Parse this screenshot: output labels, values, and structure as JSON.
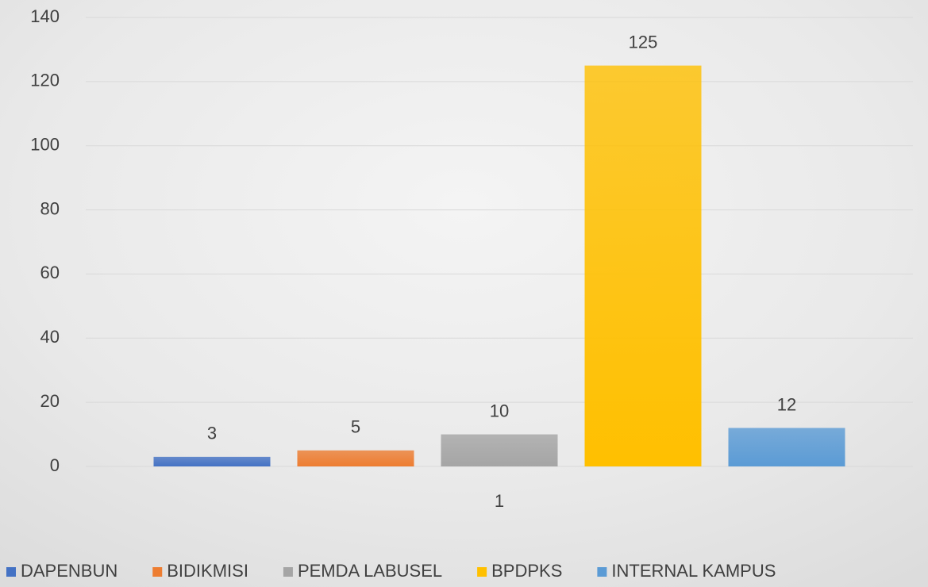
{
  "chart_data": {
    "type": "bar",
    "categories": [
      "1"
    ],
    "series": [
      {
        "name": "DAPENBUN",
        "color": "#4472c4",
        "values": [
          3
        ]
      },
      {
        "name": "BIDIKMISI",
        "color": "#ed7d31",
        "values": [
          5
        ]
      },
      {
        "name": "PEMDA LABUSEL",
        "color": "#a5a5a5",
        "values": [
          10
        ]
      },
      {
        "name": "BPDPKS",
        "color": "#ffc000",
        "values": [
          125
        ]
      },
      {
        "name": "INTERNAL KAMPUS",
        "color": "#5b9bd5",
        "values": [
          12
        ]
      }
    ],
    "ylim": [
      0,
      140
    ],
    "yticks": [
      0,
      20,
      40,
      60,
      80,
      100,
      120,
      140
    ],
    "grid": true,
    "legend": "bottom"
  }
}
